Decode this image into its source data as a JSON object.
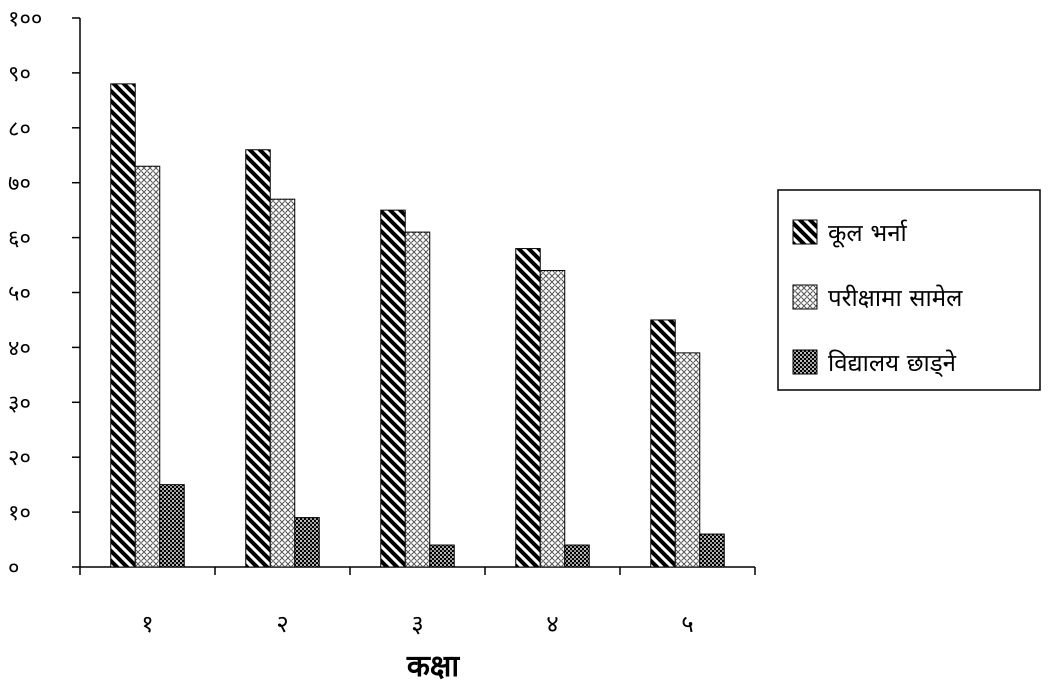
{
  "chart_data": {
    "type": "bar",
    "xlabel": "कक्षा",
    "ylabel": "",
    "ylim": [
      0,
      100
    ],
    "y_ticks": [
      "०",
      "१०",
      "२०",
      "३०",
      "४०",
      "५०",
      "६०",
      "७०",
      "८०",
      "९०",
      "१००"
    ],
    "categories": [
      "१",
      "२",
      "३",
      "४",
      "५"
    ],
    "series": [
      {
        "name": "कूल भर्ना",
        "values": [
          88,
          76,
          65,
          58,
          45
        ],
        "pattern": "diagonal-stripes"
      },
      {
        "name": "परीक्षामा सामेल",
        "values": [
          73,
          67,
          61,
          54,
          39
        ],
        "pattern": "crosshatch-light"
      },
      {
        "name": "विद्यालय छाड्ने",
        "values": [
          15,
          9,
          4,
          4,
          6
        ],
        "pattern": "checker-dark"
      }
    ],
    "grid": false,
    "legend_position": "right",
    "colors": {
      "bar_fill": "#ffffff",
      "ink": "#000000"
    }
  }
}
